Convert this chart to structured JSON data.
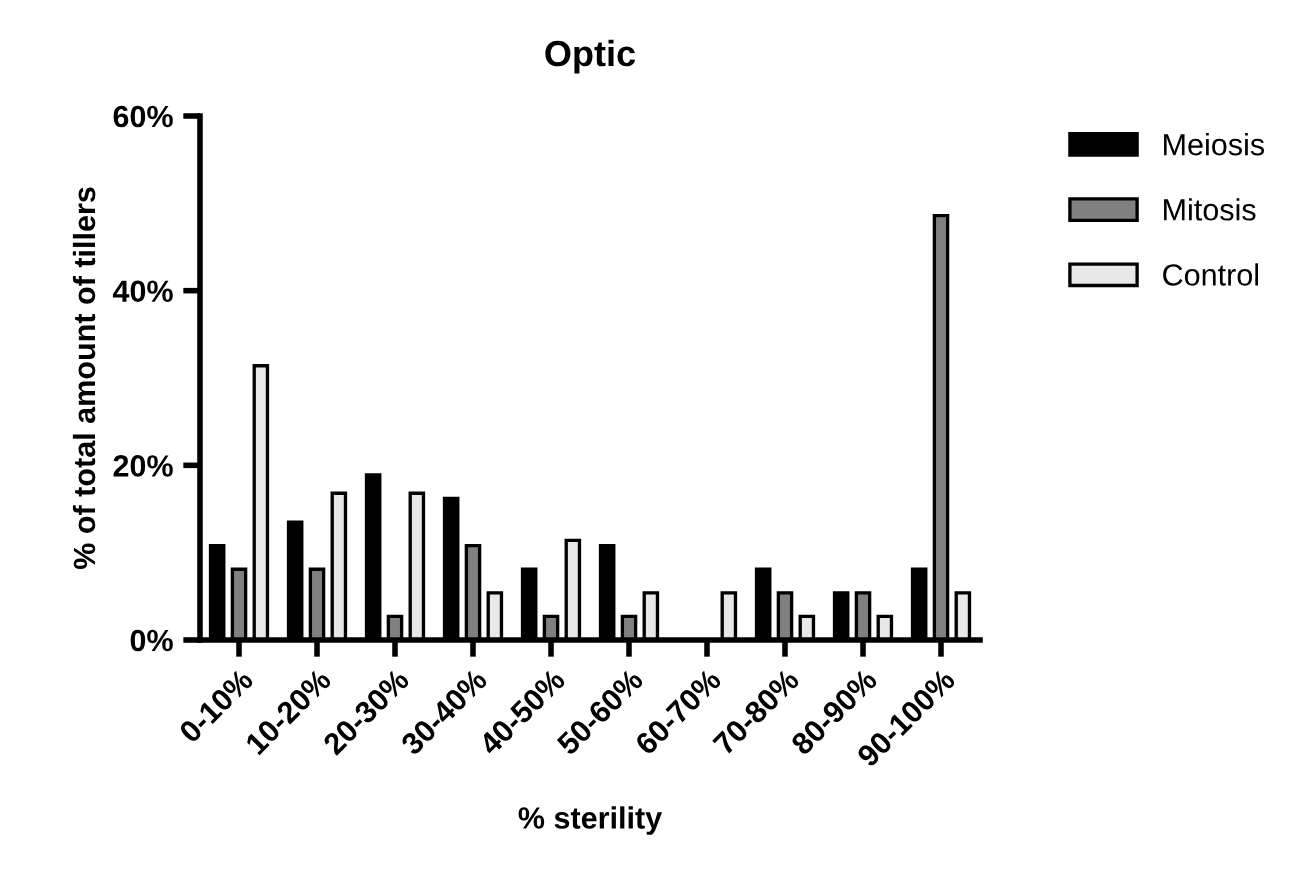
{
  "chart_data": {
    "type": "bar",
    "title": "Optic",
    "xlabel": "% sterility",
    "ylabel": "% of total amount of tillers",
    "categories": [
      "0-10%",
      "10-20%",
      "20-30%",
      "30-40%",
      "40-50%",
      "50-60%",
      "60-70%",
      "70-80%",
      "80-90%",
      "90-100%"
    ],
    "series": [
      {
        "name": "Meiosis",
        "color": "#000000",
        "values": [
          10.8,
          13.5,
          18.9,
          16.2,
          8.1,
          10.8,
          0,
          8.1,
          5.4,
          8.1
        ]
      },
      {
        "name": "Mitosis",
        "color": "#808080",
        "values": [
          8.1,
          8.1,
          2.7,
          10.8,
          2.7,
          2.7,
          0,
          5.4,
          5.4,
          48.6
        ]
      },
      {
        "name": "Control",
        "color": "#e8e8e8",
        "values": [
          31.4,
          16.8,
          16.8,
          5.4,
          11.4,
          5.4,
          5.4,
          2.7,
          2.7,
          5.4
        ]
      }
    ],
    "ylim": [
      0,
      60
    ],
    "yticks": [
      {
        "value": 0,
        "label": "0%"
      },
      {
        "value": 20,
        "label": "20%"
      },
      {
        "value": 40,
        "label": "40%"
      },
      {
        "value": 60,
        "label": "60%"
      }
    ],
    "grid": false,
    "legend": "right"
  }
}
